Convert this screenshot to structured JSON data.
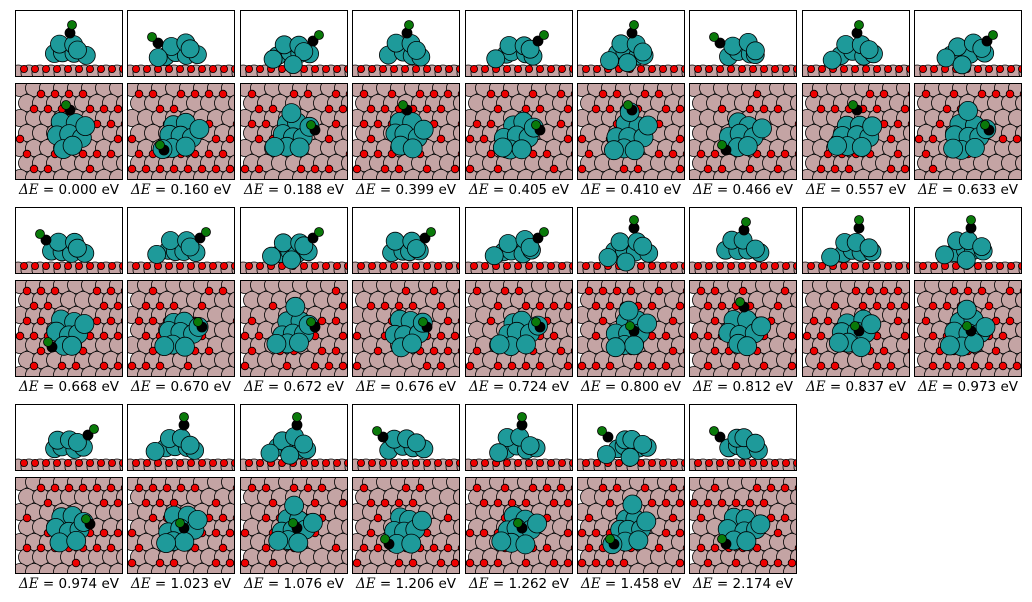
{
  "layout": {
    "columns": 9
  },
  "colors": {
    "support_atom": "#c4a4a4",
    "oxygen_atom": "#ee0000",
    "metal_atom": "#1e9a9a",
    "carbon_atom": "#000000",
    "adsorbate_atom": "#0a7a0a",
    "outline": "#000000"
  },
  "label_symbol": "ΔE",
  "label_unit": "eV",
  "structures": [
    {
      "label": "0.000",
      "site": "top"
    },
    {
      "label": "0.160",
      "site": "left"
    },
    {
      "label": "0.188",
      "site": "right"
    },
    {
      "label": "0.399",
      "site": "top"
    },
    {
      "label": "0.405",
      "site": "right"
    },
    {
      "label": "0.410",
      "site": "top"
    },
    {
      "label": "0.466",
      "site": "left"
    },
    {
      "label": "0.557",
      "site": "top"
    },
    {
      "label": "0.633",
      "site": "right"
    },
    {
      "label": "0.668",
      "site": "left"
    },
    {
      "label": "0.670",
      "site": "right"
    },
    {
      "label": "0.672",
      "site": "right"
    },
    {
      "label": "0.676",
      "site": "right"
    },
    {
      "label": "0.724",
      "site": "right"
    },
    {
      "label": "0.800",
      "site": "center"
    },
    {
      "label": "0.812",
      "site": "top"
    },
    {
      "label": "0.837",
      "site": "center"
    },
    {
      "label": "0.973",
      "site": "center"
    },
    {
      "label": "0.974",
      "site": "right"
    },
    {
      "label": "1.023",
      "site": "center"
    },
    {
      "label": "1.076",
      "site": "center"
    },
    {
      "label": "1.206",
      "site": "left"
    },
    {
      "label": "1.262",
      "site": "center"
    },
    {
      "label": "1.458",
      "site": "left"
    },
    {
      "label": "2.174",
      "site": "left"
    }
  ]
}
